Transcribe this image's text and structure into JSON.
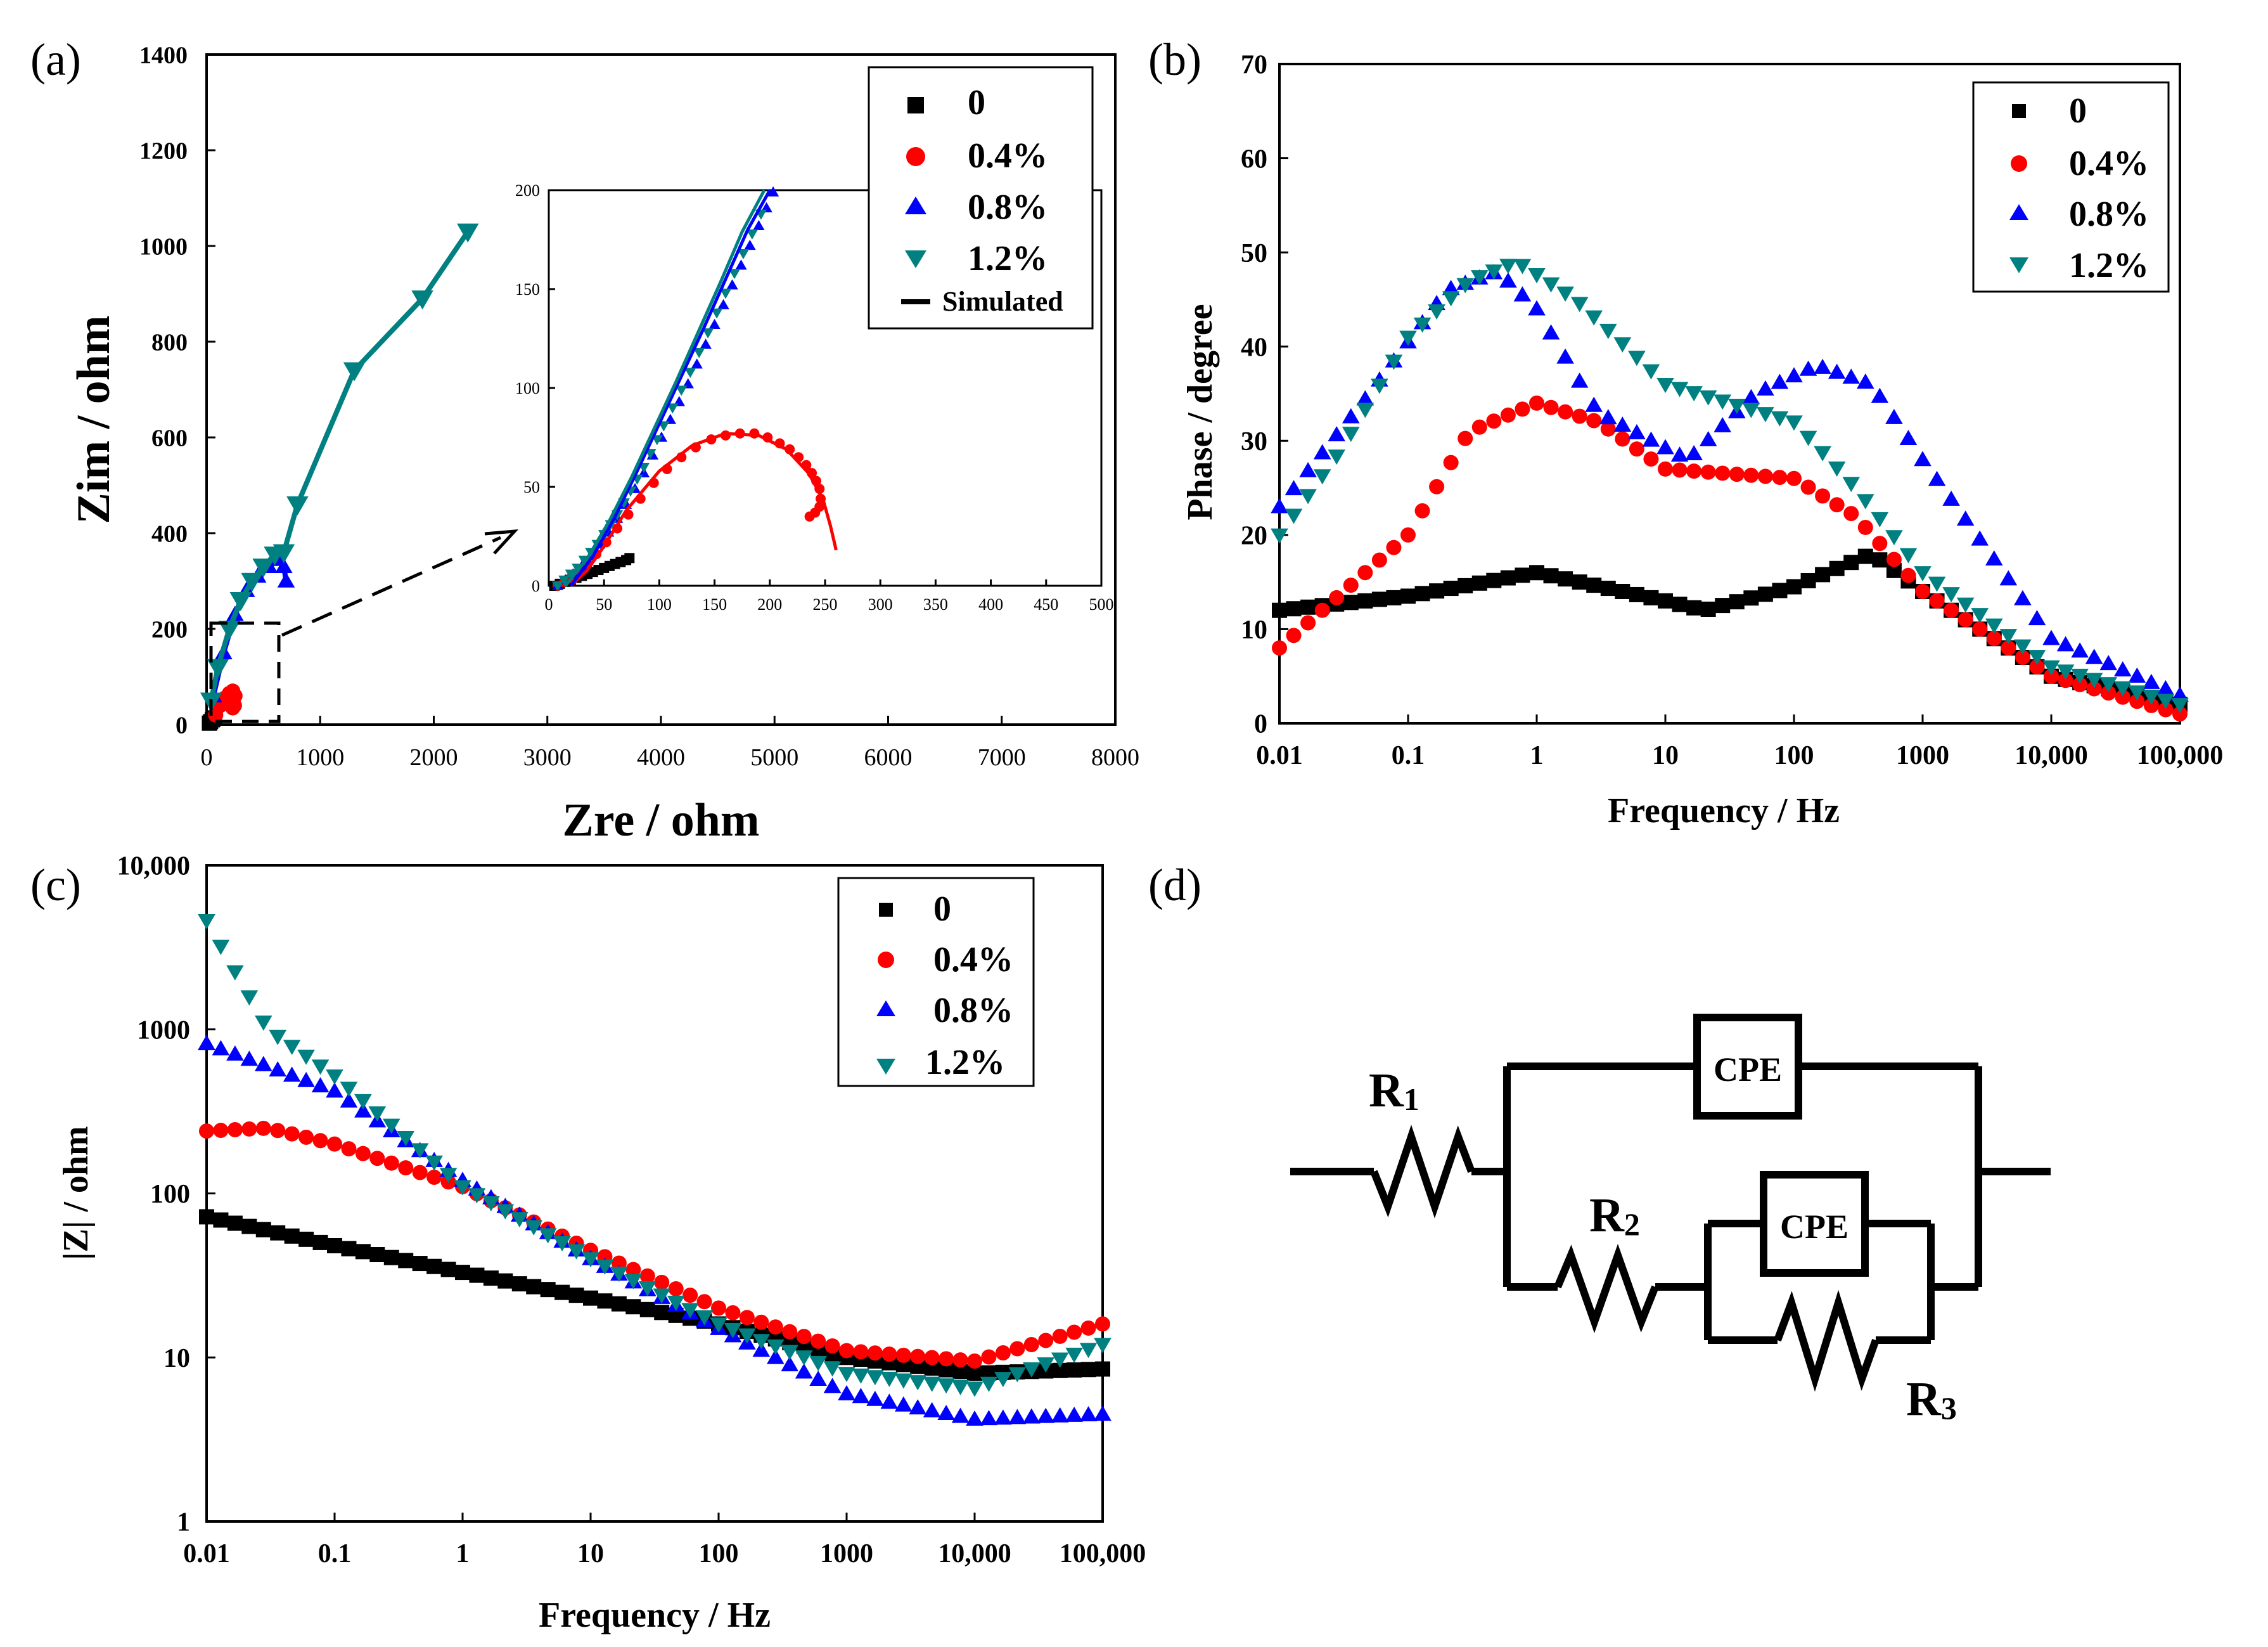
{
  "colors": {
    "s0": "#000000",
    "s04": "#ff0000",
    "s08": "#0000ff",
    "s12": "#008080",
    "sim": "#000000"
  },
  "chart_data": [
    {
      "panel": "(a)",
      "type": "scatter",
      "xlabel": "Zre / ohm",
      "ylabel": "Zim / ohm",
      "xlim": [
        0,
        8000
      ],
      "ylim": [
        0,
        1400
      ],
      "xticks": [
        "0",
        "1000",
        "2000",
        "3000",
        "4000",
        "5000",
        "6000",
        "7000",
        "8000"
      ],
      "yticks": [
        "0",
        "200",
        "400",
        "600",
        "800",
        "1000",
        "1200",
        "1400"
      ],
      "legend": [
        "0",
        "0.4%",
        "0.8%",
        "1.2%",
        "Simulated"
      ],
      "series": [
        {
          "name": "0",
          "marker": "square",
          "x": [
            25,
            35,
            50,
            60,
            70
          ],
          "y": [
            3,
            6,
            10,
            12,
            14
          ]
        },
        {
          "name": "0.4%",
          "marker": "circle",
          "x": [
            80,
            120,
            160,
            200,
            230,
            250,
            245,
            230
          ],
          "y": [
            20,
            40,
            55,
            65,
            70,
            60,
            40,
            35
          ]
        },
        {
          "name": "0.8%",
          "marker": "triangle-up",
          "x": [
            60,
            150,
            250,
            350,
            450,
            550,
            620,
            680,
            700
          ],
          "y": [
            60,
            150,
            230,
            280,
            310,
            330,
            345,
            330,
            300
          ]
        },
        {
          "name": "1.2%",
          "marker": "triangle-down",
          "x": [
            40,
            100,
            200,
            300,
            400,
            500,
            600,
            680,
            800,
            1300,
            1900,
            2300
          ],
          "y": [
            50,
            120,
            200,
            260,
            300,
            330,
            355,
            360,
            460,
            740,
            890,
            1030
          ]
        }
      ],
      "inset": {
        "xlim": [
          0,
          500
        ],
        "ylim": [
          0,
          200
        ],
        "xticks": [
          "0",
          "50",
          "100",
          "150",
          "200",
          "250",
          "300",
          "350",
          "400",
          "450",
          "500"
        ],
        "yticks": [
          "0",
          "50",
          "100",
          "150",
          "200"
        ],
        "series": [
          {
            "name": "0",
            "marker": "square",
            "x": [
              5,
              10,
              15,
              20,
              25,
              30,
              35,
              40,
              45,
              50,
              55,
              60,
              65,
              70,
              73
            ],
            "y": [
              0,
              1,
              2,
              3,
              4,
              5,
              6,
              7,
              8,
              9,
              10,
              11,
              12,
              13,
              14
            ]
          },
          {
            "name": "0.4%",
            "marker": "circle",
            "x": [
              8,
              14,
              20,
              27,
              35,
              43,
              52,
              62,
              72,
              83,
              95,
              107,
              120,
              133,
              147,
              160,
              173,
              186,
              198,
              209,
              218,
              226,
              233,
              238,
              242,
              245,
              246,
              245,
              241,
              236
            ],
            "y": [
              0,
              2,
              4,
              7,
              11,
              16,
              22,
              29,
              36,
              44,
              52,
              59,
              65,
              70,
              74,
              76,
              77,
              77,
              75,
              72,
              69,
              65,
              61,
              57,
              53,
              49,
              44,
              40,
              37,
              35
            ]
          },
          {
            "name": "0.8%",
            "marker": "triangle-up",
            "x": [
              8,
              15,
              22,
              30,
              38,
              46,
              54,
              62,
              70,
              78,
              86,
              94,
              102,
              110,
              118,
              126,
              134,
              142,
              150,
              158,
              166,
              174,
              182,
              190,
              197,
              203
            ],
            "y": [
              0,
              3,
              6,
              10,
              15,
              21,
              27,
              34,
              41,
              49,
              57,
              66,
              75,
              84,
              93,
              102,
              112,
              122,
              132,
              142,
              152,
              162,
              172,
              182,
              191,
              199
            ]
          },
          {
            "name": "1.2%",
            "marker": "triangle-down",
            "x": [
              8,
              14,
              20,
              26,
              32,
              38,
              44,
              50,
              56,
              62,
              68,
              74,
              80,
              86,
              92,
              98,
              104,
              112,
              120,
              128,
              136,
              144,
              152,
              160,
              168,
              176,
              184,
              192
            ],
            "y": [
              0,
              3,
              6,
              9,
              13,
              17,
              21,
              26,
              31,
              36,
              42,
              48,
              54,
              60,
              67,
              74,
              81,
              90,
              99,
              108,
              118,
              128,
              138,
              148,
              158,
              168,
              178,
              188
            ]
          }
        ],
        "simulated": [
          {
            "name": "0.4% fit",
            "color": "s04",
            "x": [
              20,
              35,
              50,
              70,
              100,
              130,
              160,
              190,
              215,
              235,
              248,
              255,
              260
            ],
            "y": [
              0,
              8,
              20,
              38,
              58,
              71,
              77,
              76,
              69,
              57,
              44,
              30,
              18
            ]
          },
          {
            "name": "0.8% fit",
            "color": "s08",
            "x": [
              20,
              40,
              60,
              80,
              100,
              120,
              140,
              160,
              180,
              200
            ],
            "y": [
              0,
              15,
              35,
              58,
              82,
              106,
              130,
              155,
              180,
              205
            ]
          },
          {
            "name": "1.2% fit",
            "color": "s12",
            "x": [
              15,
              35,
              55,
              75,
              95,
              115,
              135,
              155,
              175,
              195
            ],
            "y": [
              0,
              14,
              33,
              55,
              79,
              103,
              128,
              153,
              179,
              205
            ]
          }
        ]
      }
    },
    {
      "panel": "(b)",
      "type": "scatter",
      "xlabel": "Frequency / Hz",
      "ylabel": "Phase / degree",
      "xscale": "log",
      "xlim": [
        0.01,
        100000
      ],
      "ylim": [
        0,
        70
      ],
      "xticks": [
        "0.01",
        "0.1",
        "1",
        "10",
        "100",
        "1000",
        "10,000",
        "100,000"
      ],
      "yticks": [
        "0",
        "10",
        "20",
        "30",
        "40",
        "50",
        "60",
        "70"
      ],
      "legend": [
        "0",
        "0.4%",
        "0.8%",
        "1.2%"
      ],
      "series": [
        {
          "name": "0",
          "marker": "square",
          "x": [
            0.01,
            0.1,
            1,
            10,
            20,
            100,
            400,
            1000,
            10000,
            100000
          ],
          "y": [
            12,
            13.5,
            16,
            13,
            12,
            14.5,
            18,
            14,
            5,
            2
          ]
        },
        {
          "name": "0.4%",
          "marker": "circle",
          "x": [
            0.01,
            0.1,
            0.3,
            1,
            3,
            10,
            100,
            300,
            1000,
            10000,
            100000
          ],
          "y": [
            8,
            20,
            31,
            34,
            32,
            27,
            26,
            22,
            14,
            5,
            1
          ]
        },
        {
          "name": "0.8%",
          "marker": "triangle-up",
          "x": [
            0.01,
            0.05,
            0.2,
            0.5,
            1,
            3,
            15,
            50,
            150,
            400,
            1000,
            10000,
            100000
          ],
          "y": [
            23,
            35,
            46,
            48,
            44,
            33,
            28,
            35,
            38,
            36,
            28,
            9,
            3
          ]
        },
        {
          "name": "1.2%",
          "marker": "triangle-down",
          "x": [
            0.01,
            0.03,
            0.1,
            0.3,
            0.7,
            2,
            10,
            100,
            300,
            1000,
            10000,
            100000
          ],
          "y": [
            20,
            29,
            41,
            47,
            49,
            45,
            36,
            32,
            25,
            16,
            6,
            2
          ]
        }
      ]
    },
    {
      "panel": "(c)",
      "type": "scatter",
      "xlabel": "Frequency / Hz",
      "ylabel": "|Z| / ohm",
      "xscale": "log",
      "yscale": "log",
      "xlim": [
        0.01,
        100000
      ],
      "ylim": [
        1,
        10000
      ],
      "xticks": [
        "0.01",
        "0.1",
        "1",
        "10",
        "100",
        "1000",
        "10,000",
        "100,000"
      ],
      "yticks": [
        "1",
        "10",
        "100",
        "1000",
        "10,000"
      ],
      "legend": [
        "0",
        "0.4%",
        "0.8%",
        "1.2%"
      ],
      "series": [
        {
          "name": "0",
          "marker": "square",
          "x": [
            0.01,
            0.1,
            1,
            10,
            100,
            1000,
            10000,
            100000
          ],
          "y": [
            72,
            48,
            33,
            23,
            16,
            10,
            8,
            8.5
          ]
        },
        {
          "name": "0.4%",
          "marker": "circle",
          "x": [
            0.01,
            0.03,
            0.1,
            0.3,
            1,
            10,
            100,
            1000,
            10000,
            100000
          ],
          "y": [
            240,
            250,
            200,
            150,
            110,
            45,
            20,
            11,
            9.5,
            16
          ]
        },
        {
          "name": "0.8%",
          "marker": "triangle-up",
          "x": [
            0.01,
            0.1,
            1,
            10,
            100,
            1000,
            10000,
            100000
          ],
          "y": [
            820,
            420,
            120,
            40,
            15,
            6,
            4.2,
            4.5
          ]
        },
        {
          "name": "1.2%",
          "marker": "triangle-down",
          "x": [
            0.01,
            0.015,
            0.03,
            0.1,
            1,
            10,
            100,
            1000,
            10000,
            100000
          ],
          "y": [
            4600,
            2600,
            1000,
            520,
            110,
            40,
            16,
            8,
            6.5,
            12
          ]
        }
      ]
    },
    {
      "panel": "(d)",
      "type": "other",
      "labels": {
        "r1": "R",
        "r1sub": "1",
        "r2": "R",
        "r2sub": "2",
        "r3": "R",
        "r3sub": "3",
        "cpe1": "CPE",
        "cpe2": "CPE"
      }
    }
  ]
}
